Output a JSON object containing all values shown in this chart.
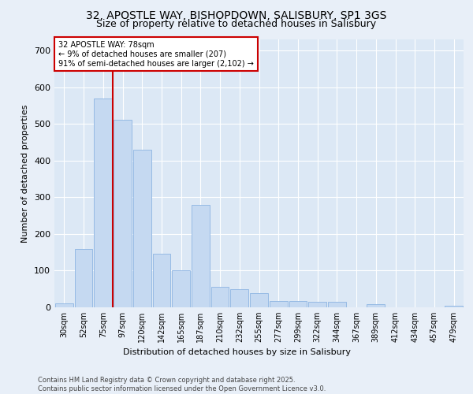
{
  "title_line1": "32, APOSTLE WAY, BISHOPDOWN, SALISBURY, SP1 3GS",
  "title_line2": "Size of property relative to detached houses in Salisbury",
  "xlabel": "Distribution of detached houses by size in Salisbury",
  "ylabel": "Number of detached properties",
  "categories": [
    "30sqm",
    "52sqm",
    "75sqm",
    "97sqm",
    "120sqm",
    "142sqm",
    "165sqm",
    "187sqm",
    "210sqm",
    "232sqm",
    "255sqm",
    "277sqm",
    "299sqm",
    "322sqm",
    "344sqm",
    "367sqm",
    "389sqm",
    "412sqm",
    "434sqm",
    "457sqm",
    "479sqm"
  ],
  "values": [
    10,
    158,
    570,
    510,
    430,
    145,
    100,
    280,
    55,
    50,
    38,
    18,
    18,
    14,
    14,
    0,
    8,
    0,
    0,
    0,
    5
  ],
  "bar_color": "#c5d9f1",
  "bar_edge_color": "#8db4e2",
  "vline_color": "#cc0000",
  "vline_x_index": 2,
  "annotation_text": "32 APOSTLE WAY: 78sqm\n← 9% of detached houses are smaller (207)\n91% of semi-detached houses are larger (2,102) →",
  "annotation_box_facecolor": "#ffffff",
  "annotation_box_edgecolor": "#cc0000",
  "ylim": [
    0,
    730
  ],
  "yticks": [
    0,
    100,
    200,
    300,
    400,
    500,
    600,
    700
  ],
  "footer_text": "Contains HM Land Registry data © Crown copyright and database right 2025.\nContains public sector information licensed under the Open Government Licence v3.0.",
  "bg_color": "#e8eff8",
  "plot_bg_color": "#dce8f5",
  "title_fontsize": 10,
  "subtitle_fontsize": 9,
  "ylabel_fontsize": 8,
  "xlabel_fontsize": 8,
  "tick_fontsize": 7,
  "footer_fontsize": 6
}
